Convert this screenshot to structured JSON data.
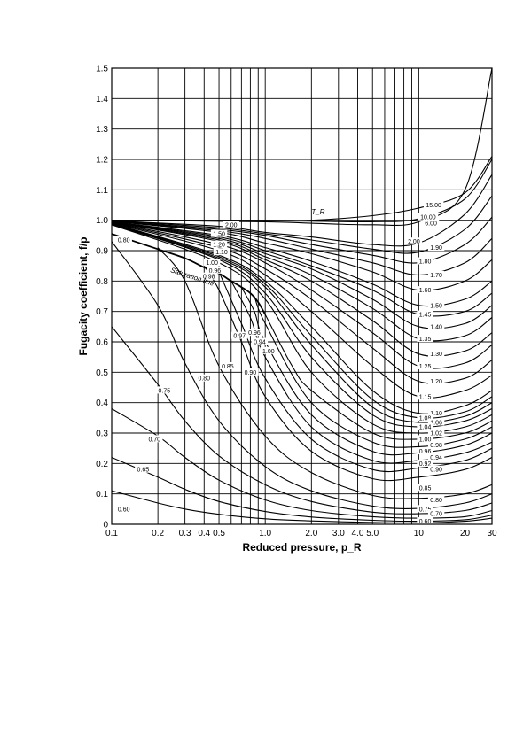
{
  "chart_data": {
    "type": "line",
    "title": "",
    "xlabel": "Reduced pressure, p_R",
    "ylabel": "Fugacity coefficient, f/p",
    "xscale": "log",
    "xlim": [
      0.1,
      30
    ],
    "ylim": [
      0,
      1.5
    ],
    "grid": true,
    "legend": "none",
    "x_ticks": [
      0.1,
      0.2,
      0.3,
      0.4,
      0.5,
      1.0,
      2.0,
      3.0,
      4.0,
      5.0,
      10,
      20,
      30
    ],
    "x_tick_labels": [
      "0.1",
      "0.2",
      "0.3",
      "0.4",
      "0.5",
      "1.0",
      "2.0",
      "3.0",
      "4.0",
      "5.0",
      "10",
      "20",
      "30"
    ],
    "y_ticks": [
      0,
      0.1,
      0.2,
      0.3,
      0.4,
      0.5,
      0.6,
      0.7,
      0.8,
      0.9,
      1.0,
      1.1,
      1.2,
      1.3,
      1.4,
      1.5
    ],
    "y_tick_labels": [
      "0",
      "0.1",
      "0.2",
      "0.3",
      "0.4",
      "0.5",
      "0.6",
      "0.7",
      "0.8",
      "0.9",
      "1.0",
      "1.1",
      "1.2",
      "1.3",
      "1.4",
      "1.5"
    ],
    "annotations": [
      "T_R",
      "Saturation line"
    ],
    "saturation_line": {
      "x": [
        0.1,
        0.2,
        0.3,
        0.4,
        0.5,
        0.6,
        0.7,
        0.8,
        0.9,
        1.0
      ],
      "y": [
        0.955,
        0.905,
        0.875,
        0.845,
        0.825,
        0.8,
        0.78,
        0.76,
        0.73,
        0.69
      ]
    },
    "series": [
      {
        "name": "0.60",
        "x": [
          0.1,
          0.2,
          0.3,
          0.5,
          1.0,
          2.0,
          5.0,
          10,
          20,
          30
        ],
        "y": [
          0.11,
          0.07,
          0.05,
          0.033,
          0.018,
          0.011,
          0.006,
          0.005,
          0.01,
          0.02
        ]
      },
      {
        "name": "0.65",
        "x": [
          0.1,
          0.2,
          0.3,
          0.5,
          1.0,
          2.0,
          5.0,
          10,
          20,
          30
        ],
        "y": [
          0.22,
          0.155,
          0.115,
          0.075,
          0.042,
          0.024,
          0.013,
          0.01,
          0.015,
          0.03
        ]
      },
      {
        "name": "0.70",
        "x": [
          0.1,
          0.2,
          0.3,
          0.5,
          1.0,
          2.0,
          5.0,
          10,
          20,
          30
        ],
        "y": [
          0.38,
          0.29,
          0.22,
          0.145,
          0.08,
          0.045,
          0.025,
          0.02,
          0.025,
          0.045
        ]
      },
      {
        "name": "0.75",
        "x": [
          0.1,
          0.2,
          0.3,
          0.5,
          1.0,
          2.0,
          5.0,
          10,
          20,
          30
        ],
        "y": [
          0.65,
          0.46,
          0.34,
          0.225,
          0.13,
          0.075,
          0.04,
          0.035,
          0.045,
          0.07
        ]
      },
      {
        "name": "0.80",
        "x": [
          0.1,
          0.2,
          0.3,
          0.5,
          1.0,
          2.0,
          5.0,
          10,
          20,
          30
        ],
        "y": [
          0.93,
          0.72,
          0.53,
          0.34,
          0.19,
          0.11,
          0.06,
          0.052,
          0.07,
          0.1
        ]
      },
      {
        "name": "0.85",
        "x": [
          0.2,
          0.3,
          0.5,
          1.0,
          2.0,
          5.0,
          10,
          20,
          30
        ],
        "y": [
          0.91,
          0.8,
          0.52,
          0.29,
          0.17,
          0.095,
          0.085,
          0.1,
          0.13
        ]
      },
      {
        "name": "0.90",
        "x": [
          0.4,
          0.5,
          0.7,
          1.0,
          2.0,
          5.0,
          10,
          20,
          30
        ],
        "y": [
          0.85,
          0.77,
          0.6,
          0.42,
          0.24,
          0.15,
          0.155,
          0.18,
          0.22
        ]
      },
      {
        "name": "0.92",
        "x": [
          0.5,
          0.7,
          1.0,
          2.0,
          5.0,
          10,
          20,
          30
        ],
        "y": [
          0.83,
          0.66,
          0.48,
          0.28,
          0.18,
          0.185,
          0.21,
          0.25
        ]
      },
      {
        "name": "0.94",
        "x": [
          0.6,
          0.8,
          1.0,
          2.0,
          5.0,
          10,
          20,
          30
        ],
        "y": [
          0.8,
          0.68,
          0.55,
          0.32,
          0.21,
          0.21,
          0.235,
          0.27
        ]
      },
      {
        "name": "0.96",
        "x": [
          0.7,
          0.85,
          1.0,
          2.0,
          5.0,
          10,
          20,
          30
        ],
        "y": [
          0.78,
          0.7,
          0.6,
          0.36,
          0.24,
          0.235,
          0.26,
          0.3
        ]
      },
      {
        "name": "0.98",
        "x": [
          0.85,
          1.0,
          2.0,
          5.0,
          10,
          20,
          30
        ],
        "y": [
          0.75,
          0.66,
          0.4,
          0.27,
          0.255,
          0.28,
          0.32
        ]
      },
      {
        "name": "1.00",
        "x": [
          1.0,
          1.5,
          2.0,
          5.0,
          10,
          20,
          30
        ],
        "y": [
          0.69,
          0.52,
          0.44,
          0.3,
          0.28,
          0.3,
          0.34
        ]
      },
      {
        "name": "1.02",
        "x": [
          0.1,
          0.5,
          1.0,
          2.0,
          5.0,
          10,
          20,
          30
        ],
        "y": [
          0.985,
          0.86,
          0.74,
          0.5,
          0.33,
          0.3,
          0.32,
          0.36
        ]
      },
      {
        "name": "1.04",
        "x": [
          0.1,
          0.5,
          1.0,
          2.0,
          5.0,
          10,
          20,
          30
        ],
        "y": [
          0.986,
          0.87,
          0.76,
          0.55,
          0.36,
          0.32,
          0.34,
          0.38
        ]
      },
      {
        "name": "1.06",
        "x": [
          0.1,
          0.5,
          1.0,
          2.0,
          5.0,
          10,
          20,
          30
        ],
        "y": [
          0.987,
          0.875,
          0.78,
          0.59,
          0.385,
          0.335,
          0.355,
          0.4
        ]
      },
      {
        "name": "1.08",
        "x": [
          0.1,
          0.5,
          1.0,
          2.0,
          5.0,
          10,
          20,
          30
        ],
        "y": [
          0.988,
          0.88,
          0.79,
          0.62,
          0.41,
          0.35,
          0.37,
          0.42
        ]
      },
      {
        "name": "1.10",
        "x": [
          0.1,
          0.5,
          1.0,
          2.0,
          5.0,
          10,
          20,
          30
        ],
        "y": [
          0.989,
          0.885,
          0.8,
          0.65,
          0.44,
          0.365,
          0.39,
          0.44
        ]
      },
      {
        "name": "1.15",
        "x": [
          0.1,
          0.5,
          1.0,
          2.0,
          5.0,
          10,
          20,
          30
        ],
        "y": [
          0.99,
          0.9,
          0.82,
          0.7,
          0.52,
          0.42,
          0.44,
          0.49
        ]
      },
      {
        "name": "1.20",
        "x": [
          0.1,
          0.5,
          1.0,
          2.0,
          5.0,
          10,
          20,
          30
        ],
        "y": [
          0.991,
          0.91,
          0.84,
          0.74,
          0.58,
          0.47,
          0.48,
          0.54
        ]
      },
      {
        "name": "1.25",
        "x": [
          0.1,
          0.5,
          1.0,
          2.0,
          5.0,
          10,
          20,
          30
        ],
        "y": [
          0.992,
          0.92,
          0.86,
          0.77,
          0.63,
          0.52,
          0.53,
          0.59
        ]
      },
      {
        "name": "1.30",
        "x": [
          0.1,
          0.5,
          1.0,
          2.0,
          5.0,
          10,
          20,
          30
        ],
        "y": [
          0.993,
          0.93,
          0.87,
          0.8,
          0.67,
          0.56,
          0.57,
          0.63
        ]
      },
      {
        "name": "1.35",
        "x": [
          0.1,
          0.5,
          1.0,
          2.0,
          5.0,
          10,
          20,
          30
        ],
        "y": [
          0.993,
          0.935,
          0.88,
          0.82,
          0.71,
          0.61,
          0.62,
          0.68
        ]
      },
      {
        "name": "1.40",
        "x": [
          0.1,
          0.5,
          1.0,
          2.0,
          5.0,
          10,
          20,
          30
        ],
        "y": [
          0.994,
          0.94,
          0.89,
          0.84,
          0.74,
          0.65,
          0.66,
          0.72
        ]
      },
      {
        "name": "1.45",
        "x": [
          0.1,
          0.5,
          1.0,
          2.0,
          5.0,
          10,
          20,
          30
        ],
        "y": [
          0.994,
          0.945,
          0.9,
          0.85,
          0.77,
          0.69,
          0.7,
          0.76
        ]
      },
      {
        "name": "1.50",
        "x": [
          0.1,
          0.5,
          1.0,
          2.0,
          5.0,
          10,
          20,
          30
        ],
        "y": [
          0.995,
          0.95,
          0.91,
          0.865,
          0.79,
          0.72,
          0.74,
          0.8
        ]
      },
      {
        "name": "1.60",
        "x": [
          0.1,
          0.5,
          1.0,
          2.0,
          5.0,
          10,
          20,
          30
        ],
        "y": [
          0.996,
          0.96,
          0.925,
          0.89,
          0.83,
          0.77,
          0.8,
          0.87
        ]
      },
      {
        "name": "1.70",
        "x": [
          0.1,
          0.5,
          1.0,
          2.0,
          5.0,
          10,
          20,
          30
        ],
        "y": [
          0.997,
          0.965,
          0.94,
          0.905,
          0.86,
          0.82,
          0.86,
          0.94
        ]
      },
      {
        "name": "1.80",
        "x": [
          0.1,
          0.5,
          1.0,
          2.0,
          5.0,
          10,
          20,
          30
        ],
        "y": [
          0.997,
          0.97,
          0.95,
          0.92,
          0.885,
          0.86,
          0.92,
          1.01
        ]
      },
      {
        "name": "1.90",
        "x": [
          0.1,
          0.5,
          1.0,
          2.0,
          5.0,
          10,
          20,
          30
        ],
        "y": [
          0.998,
          0.975,
          0.955,
          0.935,
          0.905,
          0.895,
          0.97,
          1.08
        ]
      },
      {
        "name": "2.00",
        "x": [
          0.1,
          0.5,
          1.0,
          2.0,
          5.0,
          10,
          20,
          30
        ],
        "y": [
          0.998,
          0.98,
          0.96,
          0.945,
          0.92,
          0.925,
          1.02,
          1.15
        ]
      },
      {
        "name": "6.00",
        "x": [
          0.1,
          1.0,
          2.0,
          5.0,
          10,
          20,
          30
        ],
        "y": [
          1.0,
          0.995,
          0.99,
          0.985,
          0.995,
          1.1,
          1.5
        ]
      },
      {
        "name": "10.00",
        "x": [
          0.1,
          1.0,
          2.0,
          5.0,
          10,
          20,
          30
        ],
        "y": [
          1.0,
          0.998,
          0.997,
          0.995,
          1.005,
          1.07,
          1.2
        ]
      },
      {
        "name": "15.00",
        "x": [
          0.1,
          1.0,
          2.0,
          5.0,
          10,
          20,
          30
        ],
        "y": [
          1.0,
          1.0,
          1.0,
          1.015,
          1.04,
          1.09,
          1.21
        ]
      }
    ],
    "curve_labels": [
      {
        "text": "15.00",
        "x": 12.5,
        "y": 1.05
      },
      {
        "text": "10.00",
        "x": 11.5,
        "y": 1.01
      },
      {
        "text": "6.00",
        "x": 12.0,
        "y": 0.99
      },
      {
        "text": "2.00",
        "x": 9.3,
        "y": 0.93
      },
      {
        "text": "1.90",
        "x": 13.0,
        "y": 0.91
      },
      {
        "text": "1.80",
        "x": 11.0,
        "y": 0.865
      },
      {
        "text": "1.70",
        "x": 13.0,
        "y": 0.82
      },
      {
        "text": "1.60",
        "x": 11.0,
        "y": 0.77
      },
      {
        "text": "1.50",
        "x": 13.0,
        "y": 0.72
      },
      {
        "text": "1.45",
        "x": 11.0,
        "y": 0.69
      },
      {
        "text": "1.40",
        "x": 13.0,
        "y": 0.65
      },
      {
        "text": "1.35",
        "x": 11.0,
        "y": 0.61
      },
      {
        "text": "1.30",
        "x": 13.0,
        "y": 0.56
      },
      {
        "text": "1.25",
        "x": 11.0,
        "y": 0.52
      },
      {
        "text": "1.20",
        "x": 13.0,
        "y": 0.47
      },
      {
        "text": "1.15",
        "x": 11.0,
        "y": 0.42
      },
      {
        "text": "1.10",
        "x": 13.0,
        "y": 0.365
      },
      {
        "text": "1.08",
        "x": 11.0,
        "y": 0.35
      },
      {
        "text": "1.06",
        "x": 13.0,
        "y": 0.335
      },
      {
        "text": "1.04",
        "x": 11.0,
        "y": 0.32
      },
      {
        "text": "1.02",
        "x": 13.0,
        "y": 0.3
      },
      {
        "text": "1.00",
        "x": 11.0,
        "y": 0.28
      },
      {
        "text": "0.98",
        "x": 13.0,
        "y": 0.26
      },
      {
        "text": "0.96",
        "x": 11.0,
        "y": 0.24
      },
      {
        "text": "0.94",
        "x": 13.0,
        "y": 0.22
      },
      {
        "text": "0.92",
        "x": 11.0,
        "y": 0.2
      },
      {
        "text": "0.90",
        "x": 13.0,
        "y": 0.18
      },
      {
        "text": "0.85",
        "x": 11.0,
        "y": 0.12
      },
      {
        "text": "0.80",
        "x": 13.0,
        "y": 0.08
      },
      {
        "text": "0.75",
        "x": 11.0,
        "y": 0.05
      },
      {
        "text": "0.70",
        "x": 13.0,
        "y": 0.035
      },
      {
        "text": "0.60",
        "x": 11.0,
        "y": 0.01
      },
      {
        "text": "2.00",
        "x": 0.6,
        "y": 0.985
      },
      {
        "text": "1.50",
        "x": 0.5,
        "y": 0.955
      },
      {
        "text": "1.20",
        "x": 0.5,
        "y": 0.92
      },
      {
        "text": "1.10",
        "x": 0.52,
        "y": 0.895
      },
      {
        "text": "1.00",
        "x": 0.45,
        "y": 0.86
      },
      {
        "text": "0.96",
        "x": 0.47,
        "y": 0.835
      },
      {
        "text": "0.98",
        "x": 0.43,
        "y": 0.815
      },
      {
        "text": "0.80",
        "x": 0.12,
        "y": 0.935
      },
      {
        "text": "0.97",
        "x": 0.68,
        "y": 0.62
      },
      {
        "text": "0.96",
        "x": 0.85,
        "y": 0.63
      },
      {
        "text": "0.94",
        "x": 0.92,
        "y": 0.6
      },
      {
        "text": "1.00",
        "x": 1.05,
        "y": 0.57
      },
      {
        "text": "0.90",
        "x": 0.8,
        "y": 0.5
      },
      {
        "text": "0.85",
        "x": 0.57,
        "y": 0.52
      },
      {
        "text": "0.80",
        "x": 0.4,
        "y": 0.48
      },
      {
        "text": "0.75",
        "x": 0.22,
        "y": 0.44
      },
      {
        "text": "0.70",
        "x": 0.19,
        "y": 0.28
      },
      {
        "text": "0.65",
        "x": 0.16,
        "y": 0.18
      },
      {
        "text": "0.60",
        "x": 0.12,
        "y": 0.05
      }
    ]
  }
}
